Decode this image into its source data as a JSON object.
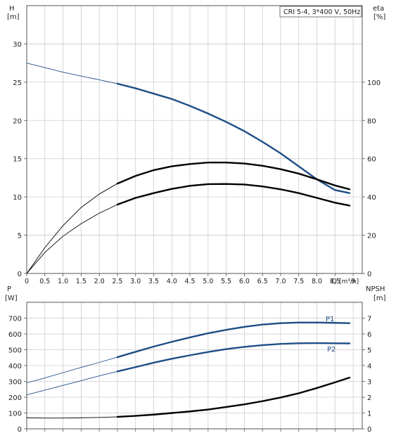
{
  "chart_data": [
    {
      "type": "line",
      "title": "CRI 5-4, 3*400 V, 50Hz",
      "left_axis": {
        "label": "H",
        "unit": "[m]",
        "ylim": [
          0,
          35
        ],
        "ticks": [
          0,
          5,
          10,
          15,
          20,
          25,
          30
        ]
      },
      "right_axis": {
        "label": "eta",
        "unit": "[%]",
        "ylim": [
          0,
          140
        ],
        "ticks": [
          0,
          20,
          40,
          60,
          80,
          100
        ]
      },
      "x_axis": {
        "label": "Q",
        "unit": "[m³/h]",
        "xlim": [
          0,
          9.25
        ],
        "ticks": [
          "0",
          "0.5",
          "1.0",
          "1.5",
          "2.0",
          "2.5",
          "3.0",
          "3.5",
          "4.0",
          "4.5",
          "5.0",
          "5.5",
          "6.0",
          "6.5",
          "7.0",
          "7.5",
          "8.0",
          "8.5",
          "9"
        ]
      },
      "grid": true,
      "series": [
        {
          "axis": "left",
          "color": "#1f4e86",
          "x": [
            0,
            0.5,
            1.0,
            1.5,
            2.0,
            2.5,
            3.0,
            3.5,
            4.0,
            4.5,
            5.0,
            5.5,
            6.0,
            6.5,
            7.0,
            7.5,
            8.0,
            8.5,
            8.9
          ],
          "y": [
            27.5,
            26.9,
            26.3,
            25.8,
            25.3,
            24.8,
            24.2,
            23.5,
            22.8,
            21.9,
            20.9,
            19.8,
            18.6,
            17.2,
            15.7,
            14.0,
            12.3,
            10.9,
            10.5
          ]
        },
        {
          "axis": "right",
          "color": "#000000",
          "x": [
            0,
            0.5,
            1.0,
            1.5,
            2.0,
            2.5,
            3.0,
            3.5,
            4.0,
            4.5,
            5.0,
            5.5,
            6.0,
            6.5,
            7.0,
            7.5,
            8.0,
            8.5,
            8.9
          ],
          "y": [
            0,
            13.5,
            25,
            34.5,
            41.5,
            47,
            51,
            54,
            56,
            57.2,
            58,
            58,
            57.5,
            56.3,
            54.5,
            52.2,
            49.2,
            46,
            44
          ]
        },
        {
          "axis": "right",
          "color": "#000000",
          "x": [
            0,
            0.5,
            1.0,
            1.5,
            2.0,
            2.5,
            3.0,
            3.5,
            4.0,
            4.5,
            5.0,
            5.5,
            6.0,
            6.5,
            7.0,
            7.5,
            8.0,
            8.5,
            8.9
          ],
          "y": [
            0,
            11,
            19.5,
            26,
            31.5,
            36,
            39.5,
            42,
            44.2,
            45.8,
            46.7,
            46.8,
            46.5,
            45.5,
            44,
            42,
            39.5,
            37,
            35.5
          ]
        }
      ]
    },
    {
      "type": "line",
      "left_axis": {
        "label": "P",
        "unit": "[W]",
        "ylim": [
          0,
          800
        ],
        "ticks": [
          0,
          100,
          200,
          300,
          400,
          500,
          600,
          700
        ]
      },
      "right_axis": {
        "label": "NPSH",
        "unit": "[m]",
        "ylim": [
          0,
          8
        ],
        "ticks": [
          0,
          1,
          2,
          3,
          4,
          5,
          6,
          7
        ]
      },
      "x_axis": {
        "xlim": [
          0,
          9.25
        ]
      },
      "grid": true,
      "series": [
        {
          "name": "P1",
          "axis": "left",
          "color": "#1f4e86",
          "x": [
            0,
            0.5,
            1.0,
            1.5,
            2.0,
            2.5,
            3.0,
            3.5,
            4.0,
            4.5,
            5.0,
            5.5,
            6.0,
            6.5,
            7.0,
            7.5,
            8.0,
            8.5,
            8.9
          ],
          "y": [
            290,
            322,
            355,
            388,
            420,
            453,
            487,
            520,
            550,
            578,
            604,
            626,
            645,
            659,
            668,
            672,
            672,
            670,
            668
          ]
        },
        {
          "name": "P2",
          "axis": "left",
          "color": "#1f4e86",
          "x": [
            0,
            0.5,
            1.0,
            1.5,
            2.0,
            2.5,
            3.0,
            3.5,
            4.0,
            4.5,
            5.0,
            5.5,
            6.0,
            6.5,
            7.0,
            7.5,
            8.0,
            8.5,
            8.9
          ],
          "y": [
            215,
            245,
            275,
            305,
            335,
            363,
            390,
            418,
            443,
            465,
            486,
            504,
            518,
            529,
            537,
            541,
            542,
            541,
            540
          ]
        },
        {
          "axis": "right",
          "color": "#000000",
          "x": [
            0,
            0.5,
            1.0,
            1.5,
            2.0,
            2.5,
            3.0,
            3.5,
            4.0,
            4.5,
            5.0,
            5.5,
            6.0,
            6.5,
            7.0,
            7.5,
            8.0,
            8.5,
            8.9
          ],
          "y": [
            0.7,
            0.68,
            0.68,
            0.7,
            0.72,
            0.76,
            0.82,
            0.9,
            1.0,
            1.1,
            1.22,
            1.38,
            1.55,
            1.75,
            1.98,
            2.25,
            2.58,
            2.94,
            3.24
          ]
        }
      ]
    }
  ]
}
